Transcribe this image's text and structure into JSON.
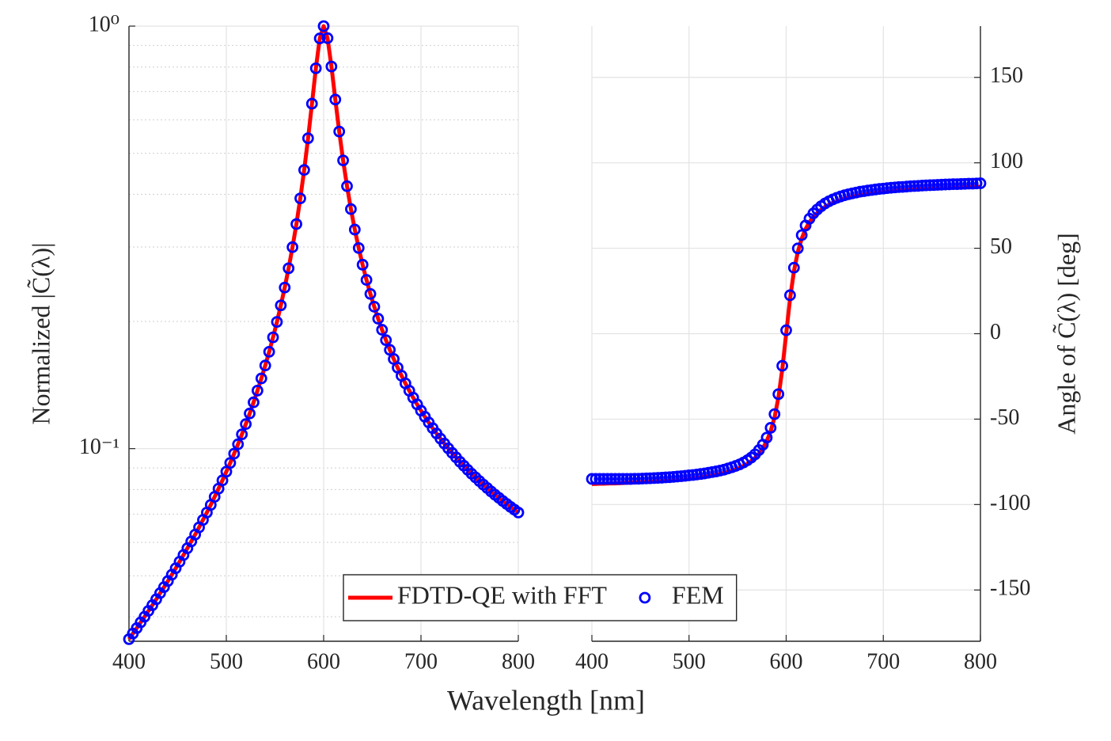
{
  "xlabel": "Wavelength [nm]",
  "chart_data": [
    {
      "type": "line",
      "yscale": "log",
      "grid": true,
      "legend": "bottom",
      "ylabel": "Normalized |C̃(λ)|",
      "xlim": [
        400,
        800
      ],
      "xticks": [
        400,
        500,
        600,
        700,
        800
      ],
      "ylim": [
        0.035,
        1
      ],
      "yticks": [
        {
          "value": 0.1,
          "label": "10⁻¹"
        },
        {
          "value": 1,
          "label": "10⁰"
        }
      ],
      "yminorticks": [
        0.04,
        0.05,
        0.06,
        0.07,
        0.08,
        0.09,
        0.2,
        0.3,
        0.4,
        0.5,
        0.6,
        0.7,
        0.8,
        0.9
      ],
      "x": [
        400,
        404,
        408,
        412,
        416,
        420,
        424,
        428,
        432,
        436,
        440,
        444,
        448,
        452,
        456,
        460,
        464,
        468,
        472,
        476,
        480,
        484,
        488,
        492,
        496,
        500,
        504,
        508,
        512,
        516,
        520,
        524,
        528,
        532,
        536,
        540,
        544,
        548,
        552,
        556,
        560,
        564,
        568,
        572,
        576,
        580,
        584,
        588,
        592,
        596,
        600,
        604,
        608,
        612,
        616,
        620,
        624,
        628,
        632,
        636,
        640,
        644,
        648,
        652,
        656,
        660,
        664,
        668,
        672,
        676,
        680,
        684,
        688,
        692,
        696,
        700,
        704,
        708,
        712,
        716,
        720,
        724,
        728,
        732,
        736,
        740,
        744,
        748,
        752,
        756,
        760,
        764,
        768,
        772,
        776,
        780,
        784,
        788,
        792,
        796,
        800
      ],
      "series": [
        {
          "name": "FDTD-QE with FFT",
          "color": "#ff0000",
          "style": "line",
          "values": [
            0.0354,
            0.0365,
            0.0376,
            0.0388,
            0.04,
            0.0413,
            0.0426,
            0.044,
            0.0455,
            0.047,
            0.0486,
            0.0503,
            0.0521,
            0.054,
            0.056,
            0.0581,
            0.0603,
            0.0626,
            0.0651,
            0.0678,
            0.0706,
            0.0736,
            0.0769,
            0.0804,
            0.0841,
            0.0882,
            0.0925,
            0.0973,
            0.1024,
            0.1081,
            0.1143,
            0.1211,
            0.1287,
            0.1372,
            0.1466,
            0.1573,
            0.1695,
            0.1834,
            0.1995,
            0.2183,
            0.2405,
            0.2672,
            0.2998,
            0.34,
            0.391,
            0.4566,
            0.5427,
            0.6553,
            0.7948,
            0.9351,
            1,
            0.9366,
            0.8026,
            0.6701,
            0.5631,
            0.481,
            0.418,
            0.369,
            0.33,
            0.2984,
            0.2725,
            0.2508,
            0.2324,
            0.2167,
            0.203,
            0.1911,
            0.1806,
            0.1713,
            0.163,
            0.1555,
            0.1488,
            0.1427,
            0.1371,
            0.132,
            0.1273,
            0.123,
            0.119,
            0.1153,
            0.1118,
            0.1086,
            0.1056,
            0.1028,
            0.1002,
            0.0977,
            0.0954,
            0.0931,
            0.0911,
            0.0891,
            0.0872,
            0.0855,
            0.0838,
            0.0822,
            0.0807,
            0.0792,
            0.0778,
            0.0765,
            0.0752,
            0.074,
            0.0728,
            0.0717,
            0.0706
          ]
        },
        {
          "name": "FEM",
          "color": "#0000ff",
          "style": "markers",
          "values": [
            0.0354,
            0.0365,
            0.0376,
            0.0388,
            0.04,
            0.0413,
            0.0426,
            0.044,
            0.0455,
            0.047,
            0.0486,
            0.0503,
            0.0521,
            0.054,
            0.056,
            0.0581,
            0.0603,
            0.0626,
            0.0651,
            0.0678,
            0.0706,
            0.0736,
            0.0769,
            0.0804,
            0.0841,
            0.0882,
            0.0925,
            0.0973,
            0.1024,
            0.1081,
            0.1143,
            0.1211,
            0.1287,
            0.1372,
            0.1466,
            0.1573,
            0.1695,
            0.1834,
            0.1995,
            0.2183,
            0.2405,
            0.2672,
            0.2998,
            0.34,
            0.391,
            0.4566,
            0.5427,
            0.6553,
            0.7948,
            0.9351,
            1,
            0.9366,
            0.8026,
            0.6701,
            0.5631,
            0.481,
            0.418,
            0.369,
            0.33,
            0.2984,
            0.2725,
            0.2508,
            0.2324,
            0.2167,
            0.203,
            0.1911,
            0.1806,
            0.1713,
            0.163,
            0.1555,
            0.1488,
            0.1427,
            0.1371,
            0.132,
            0.1273,
            0.123,
            0.119,
            0.1153,
            0.1118,
            0.1086,
            0.1056,
            0.1028,
            0.1002,
            0.0977,
            0.0954,
            0.0931,
            0.0911,
            0.0891,
            0.0872,
            0.0855,
            0.0838,
            0.0822,
            0.0807,
            0.0792,
            0.0778,
            0.0765,
            0.0752,
            0.074,
            0.0728,
            0.0717,
            0.0706
          ]
        }
      ]
    },
    {
      "type": "line",
      "grid": true,
      "yaxis": "right",
      "ylabel": "Angle of C̃(λ) [deg]",
      "xlim": [
        400,
        800
      ],
      "xticks": [
        400,
        500,
        600,
        700,
        800
      ],
      "ylim": [
        -180,
        180
      ],
      "yticks": [
        -150,
        -100,
        -50,
        0,
        50,
        100,
        150
      ],
      "x": [
        400,
        404,
        408,
        412,
        416,
        420,
        424,
        428,
        432,
        436,
        440,
        444,
        448,
        452,
        456,
        460,
        464,
        468,
        472,
        476,
        480,
        484,
        488,
        492,
        496,
        500,
        504,
        508,
        512,
        516,
        520,
        524,
        528,
        532,
        536,
        540,
        544,
        548,
        552,
        556,
        560,
        564,
        568,
        572,
        576,
        580,
        584,
        588,
        592,
        596,
        600,
        604,
        608,
        612,
        616,
        620,
        624,
        628,
        632,
        636,
        640,
        644,
        648,
        652,
        656,
        660,
        664,
        668,
        672,
        676,
        680,
        684,
        688,
        692,
        696,
        700,
        704,
        708,
        712,
        716,
        720,
        724,
        728,
        732,
        736,
        740,
        744,
        748,
        752,
        756,
        760,
        764,
        768,
        772,
        776,
        780,
        784,
        788,
        792,
        796,
        800
      ],
      "series": [
        {
          "color": "#ff0000",
          "style": "line",
          "values": [
            -88.0,
            -87.9,
            -87.8,
            -87.8,
            -87.7,
            -87.6,
            -87.6,
            -87.5,
            -87.4,
            -87.3,
            -87.2,
            -87.1,
            -87.0,
            -86.9,
            -86.8,
            -86.7,
            -86.5,
            -86.4,
            -86.3,
            -86.1,
            -86.0,
            -85.8,
            -85.6,
            -85.4,
            -85.2,
            -84.9,
            -84.7,
            -84.4,
            -84.1,
            -83.8,
            -83.4,
            -83.0,
            -82.6,
            -82.1,
            -81.6,
            -80.9,
            -80.2,
            -79.4,
            -78.5,
            -77.4,
            -76.1,
            -74.5,
            -72.6,
            -70.1,
            -67.0,
            -62.8,
            -57.1,
            -49.1,
            -37.4,
            -20.8,
            0,
            20.5,
            36.6,
            47.9,
            55.7,
            61.3,
            65.3,
            68.4,
            70.7,
            72.6,
            74.2,
            75.5,
            76.6,
            77.5,
            78.3,
            79.0,
            79.6,
            80.1,
            80.6,
            81.1,
            81.4,
            81.8,
            82.1,
            82.4,
            82.7,
            82.9,
            83.2,
            83.4,
            83.6,
            83.8,
            83.9,
            84.1,
            84.3,
            84.4,
            84.5,
            84.7,
            84.8,
            84.9,
            85.0,
            85.1,
            85.2,
            85.3,
            85.4,
            85.5,
            85.5,
            85.6,
            85.7,
            85.8,
            85.8,
            85.9,
            86.0
          ]
        },
        {
          "color": "#0000ff",
          "style": "markers",
          "values": [
            -85.0,
            -85.0,
            -85.0,
            -85.0,
            -85.0,
            -85.0,
            -85.0,
            -85.0,
            -85.0,
            -85.0,
            -85.0,
            -84.9,
            -84.9,
            -84.8,
            -84.7,
            -84.6,
            -84.5,
            -84.4,
            -84.3,
            -84.1,
            -84.0,
            -83.8,
            -83.6,
            -83.4,
            -83.2,
            -82.9,
            -82.7,
            -82.4,
            -82.1,
            -81.8,
            -81.4,
            -81.0,
            -80.6,
            -80.1,
            -79.6,
            -78.9,
            -78.2,
            -77.4,
            -76.5,
            -75.4,
            -74.1,
            -72.5,
            -70.6,
            -68.1,
            -65.0,
            -60.8,
            -55.1,
            -47.1,
            -35.4,
            -18.8,
            2,
            22.5,
            38.6,
            49.9,
            57.7,
            63.3,
            67.3,
            70.4,
            72.7,
            74.6,
            76.2,
            77.5,
            78.6,
            79.5,
            80.3,
            81.0,
            81.6,
            82.1,
            82.6,
            83.1,
            83.4,
            83.8,
            84.1,
            84.4,
            84.7,
            84.9,
            85.2,
            85.4,
            85.6,
            85.8,
            85.9,
            86.1,
            86.3,
            86.4,
            86.5,
            86.7,
            86.8,
            86.9,
            87.0,
            87.1,
            87.2,
            87.3,
            87.4,
            87.5,
            87.5,
            87.6,
            87.7,
            87.8,
            87.8,
            87.9,
            88.0
          ]
        }
      ]
    }
  ]
}
